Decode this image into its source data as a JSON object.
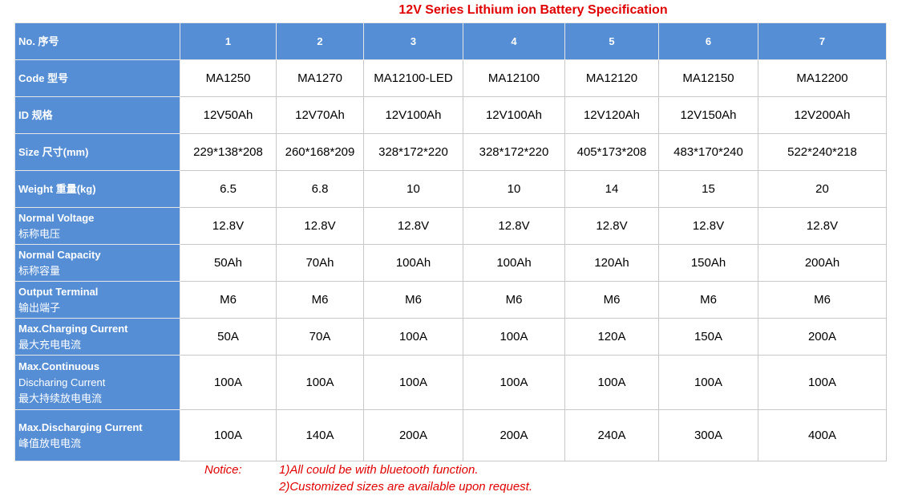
{
  "title": "12V Series Lithium ion Battery Specification",
  "table": {
    "header": {
      "label": [
        "No. 序号"
      ],
      "cells": [
        "1",
        "2",
        "3",
        "4",
        "5",
        "6",
        "7"
      ]
    },
    "rows": [
      {
        "label": [
          "Code 型号"
        ],
        "cells": [
          "MA1250",
          "MA1270",
          "MA12100-LED",
          "MA12100",
          "MA12120",
          "MA12150",
          "MA12200"
        ]
      },
      {
        "label": [
          "ID 规格"
        ],
        "cells": [
          "12V50Ah",
          "12V70Ah",
          "12V100Ah",
          "12V100Ah",
          "12V120Ah",
          "12V150Ah",
          "12V200Ah"
        ]
      },
      {
        "label": [
          "Size 尺寸(mm)"
        ],
        "cells": [
          "229*138*208",
          "260*168*209",
          "328*172*220",
          "328*172*220",
          "405*173*208",
          "483*170*240",
          "522*240*218"
        ]
      },
      {
        "label": [
          "Weight 重量(kg)"
        ],
        "cells": [
          "6.5",
          "6.8",
          "10",
          "10",
          "14",
          "15",
          "20"
        ]
      },
      {
        "label": [
          "Normal Voltage",
          "标称电压"
        ],
        "cells": [
          "12.8V",
          "12.8V",
          "12.8V",
          "12.8V",
          "12.8V",
          "12.8V",
          "12.8V"
        ]
      },
      {
        "label": [
          "Normal Capacity",
          "标称容量"
        ],
        "cells": [
          "50Ah",
          "70Ah",
          "100Ah",
          "100Ah",
          "120Ah",
          "150Ah",
          "200Ah"
        ]
      },
      {
        "label": [
          "Output Terminal",
          "输出端子"
        ],
        "cells": [
          "M6",
          "M6",
          "M6",
          "M6",
          "M6",
          "M6",
          "M6"
        ]
      },
      {
        "label": [
          "Max.Charging Current",
          "最大充电电流"
        ],
        "cells": [
          "50A",
          "70A",
          "100A",
          "100A",
          "120A",
          "150A",
          "200A"
        ]
      },
      {
        "label": [
          "Max.Continuous",
          "Discharing Current",
          "最大持续放电电流"
        ],
        "cells": [
          "100A",
          "100A",
          "100A",
          "100A",
          "100A",
          "100A",
          "100A"
        ]
      },
      {
        "label": [
          "Max.Discharging Current",
          "峰值放电电流"
        ],
        "cells": [
          "100A",
          "140A",
          "200A",
          "200A",
          "240A",
          "300A",
          "400A"
        ]
      }
    ]
  },
  "notice": {
    "label": "Notice:",
    "lines": [
      "1)All could be with bluetooth function.",
      "2)Customized sizes are available upon request."
    ]
  }
}
